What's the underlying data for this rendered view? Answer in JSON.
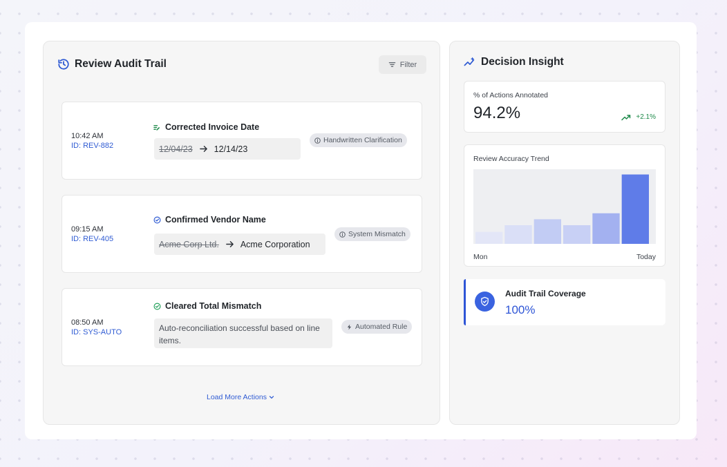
{
  "audit_panel": {
    "title": "Review Audit Trail",
    "filter_label": "Filter",
    "actions": [
      {
        "time": "10:42 AM",
        "id": "ID: REV-882",
        "title": "Corrected Invoice Date",
        "old_value": "12/04/23",
        "new_value": "12/14/23",
        "tag": "Handwritten Clarification"
      },
      {
        "time": "09:15 AM",
        "id": "ID: REV-405",
        "title": "Confirmed Vendor Name",
        "old_value": "Acme Corp Ltd.",
        "new_value": "Acme Corporation",
        "tag": "System Mismatch"
      },
      {
        "time": "08:50 AM",
        "id": "ID: SYS-AUTO",
        "title": "Cleared Total Mismatch",
        "note": "Auto-reconciliation successful based on line items.",
        "tag": "Automated Rule"
      }
    ],
    "load_more_label": "Load More Actions"
  },
  "insight_panel": {
    "title": "Decision Insight",
    "annotated": {
      "label": "% of Actions Annotated",
      "value": "94.2%",
      "delta": "+2.1%"
    },
    "trend": {
      "label": "Review Accuracy Trend",
      "x_start": "Mon",
      "x_end": "Today"
    },
    "coverage": {
      "label": "Audit Trail Coverage",
      "value": "100%"
    }
  },
  "chart_data": {
    "type": "bar",
    "title": "Review Accuracy Trend",
    "categories": [
      "Mon",
      "",
      "",
      "",
      "",
      "Today"
    ],
    "values": [
      16,
      25,
      33,
      25,
      41,
      93
    ],
    "ylim": [
      0,
      100
    ],
    "grid": false,
    "colors": [
      "#e3e6f7",
      "#dadff7",
      "#c2ccf4",
      "#c8d0f5",
      "#a3b1f0",
      "#5f7ce8"
    ],
    "background": "#eeeff2"
  }
}
